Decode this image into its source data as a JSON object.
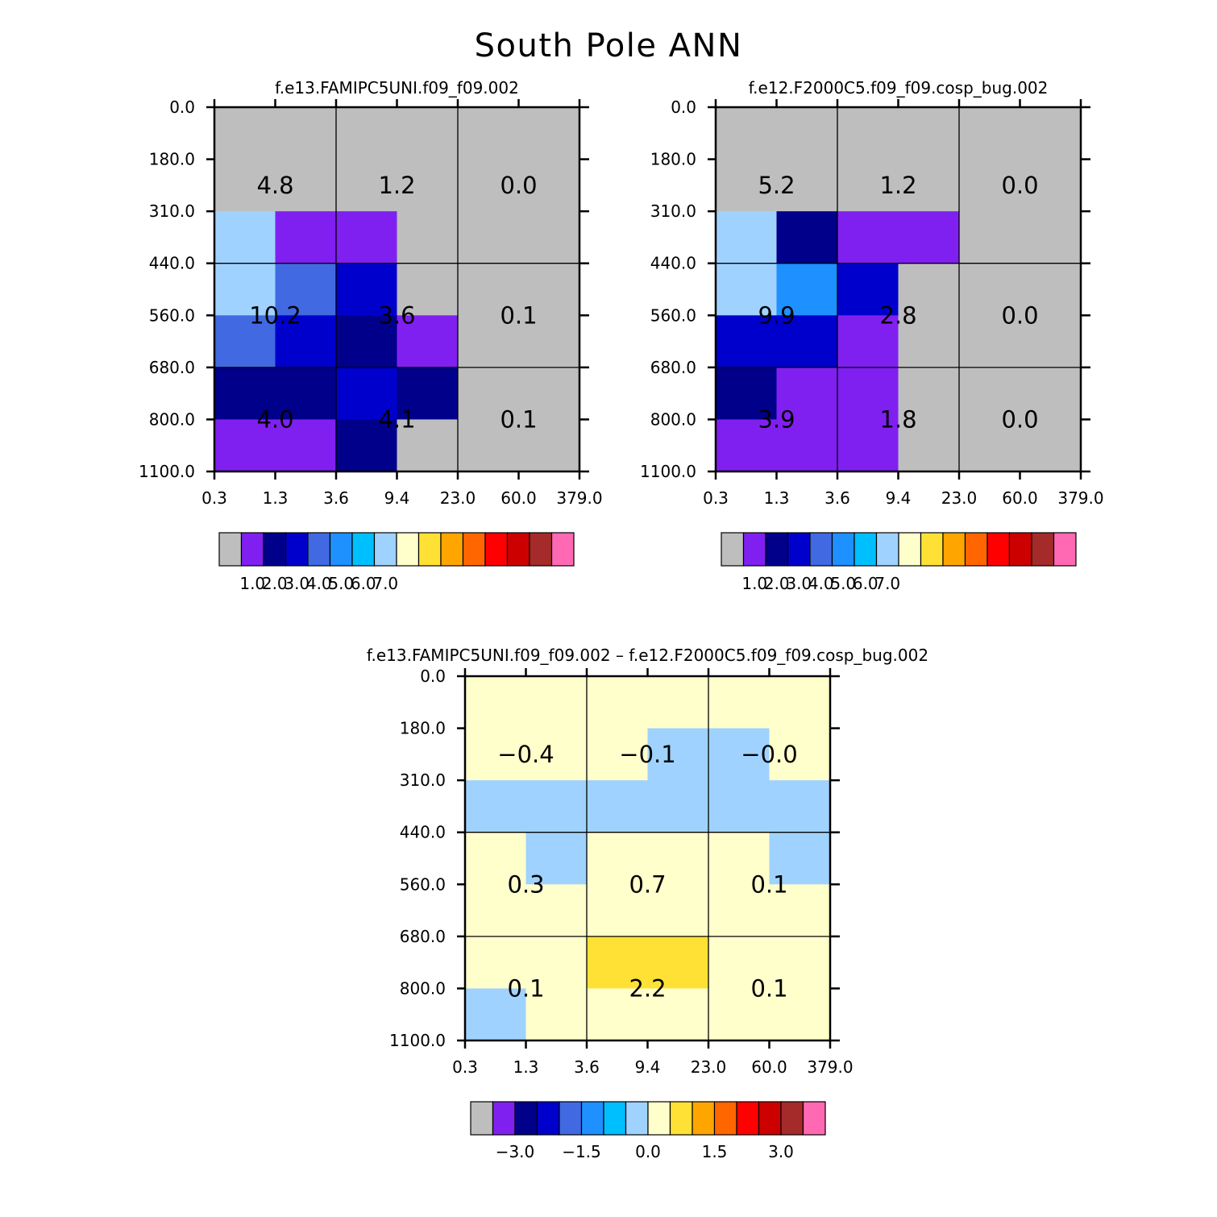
{
  "title": "South Pole ANN",
  "y_ticks": [
    "0.0",
    "180.0",
    "310.0",
    "440.0",
    "560.0",
    "680.0",
    "800.0",
    "1100.0"
  ],
  "x_ticks": [
    "0.3",
    "1.3",
    "3.6",
    "9.4",
    "23.0",
    "60.0",
    "379.0"
  ],
  "colors": {
    "palette": [
      "#bebebe",
      "#8020f0",
      "#00008b",
      "#0000cd",
      "#4169e1",
      "#1e90ff",
      "#00bfff",
      "#a0d2ff",
      "#ffffcc",
      "#ffe135",
      "#ffa500",
      "#ff6600",
      "#ff0000",
      "#cd0000",
      "#a52a2a",
      "#ff69b4"
    ]
  },
  "chart_data": [
    {
      "type": "heatmap",
      "title": "f.e13.FAMIPC5UNI.f09_f09.002",
      "cells": [
        [
          0,
          0,
          0,
          0,
          0,
          0
        ],
        [
          0,
          0,
          0,
          0,
          0,
          0
        ],
        [
          7,
          1,
          1,
          0,
          0,
          0
        ],
        [
          7,
          4,
          3,
          0,
          0,
          0
        ],
        [
          4,
          3,
          2,
          1,
          0,
          0
        ],
        [
          2,
          2,
          3,
          2,
          0,
          0
        ],
        [
          1,
          1,
          2,
          0,
          0,
          0
        ]
      ],
      "sums": [
        [
          "4.8",
          "1.2",
          "0.0"
        ],
        [
          "10.2",
          "3.6",
          "0.1"
        ],
        [
          "4.0",
          "4.1",
          "0.1"
        ]
      ],
      "colorbar": {
        "labels": [
          "1.0",
          "2.0",
          "3.0",
          "4.0",
          "5.0",
          "6.0",
          "7.0"
        ]
      }
    },
    {
      "type": "heatmap",
      "title": "f.e12.F2000C5.f09_f09.cosp_bug.002",
      "cells": [
        [
          0,
          0,
          0,
          0,
          0,
          0
        ],
        [
          0,
          0,
          0,
          0,
          0,
          0
        ],
        [
          7,
          2,
          1,
          1,
          0,
          0
        ],
        [
          7,
          5,
          3,
          0,
          0,
          0
        ],
        [
          3,
          3,
          1,
          0,
          0,
          0
        ],
        [
          2,
          1,
          1,
          0,
          0,
          0
        ],
        [
          1,
          1,
          1,
          0,
          0,
          0
        ]
      ],
      "sums": [
        [
          "5.2",
          "1.2",
          "0.0"
        ],
        [
          "9.9",
          "2.8",
          "0.0"
        ],
        [
          "3.9",
          "1.8",
          "0.0"
        ]
      ],
      "colorbar": {
        "labels": [
          "1.0",
          "2.0",
          "3.0",
          "4.0",
          "5.0",
          "6.0",
          "7.0"
        ]
      }
    },
    {
      "type": "heatmap",
      "title": "f.e13.FAMIPC5UNI.f09_f09.002 – f.e12.F2000C5.f09_f09.cosp_bug.002",
      "cells": [
        [
          8,
          8,
          8,
          8,
          8,
          8
        ],
        [
          8,
          8,
          8,
          7,
          7,
          8
        ],
        [
          7,
          7,
          7,
          7,
          7,
          7
        ],
        [
          8,
          7,
          8,
          8,
          8,
          7
        ],
        [
          8,
          8,
          8,
          8,
          8,
          8
        ],
        [
          8,
          8,
          9,
          9,
          8,
          8
        ],
        [
          7,
          8,
          8,
          8,
          8,
          8
        ]
      ],
      "sums": [
        [
          "−0.4",
          "−0.1",
          "−0.0"
        ],
        [
          "0.3",
          "0.7",
          "0.1"
        ],
        [
          "0.1",
          "2.2",
          "0.1"
        ]
      ],
      "colorbar": {
        "labels": [
          "−3.0",
          "−1.5",
          "0.0",
          "1.5",
          "3.0"
        ]
      }
    }
  ]
}
